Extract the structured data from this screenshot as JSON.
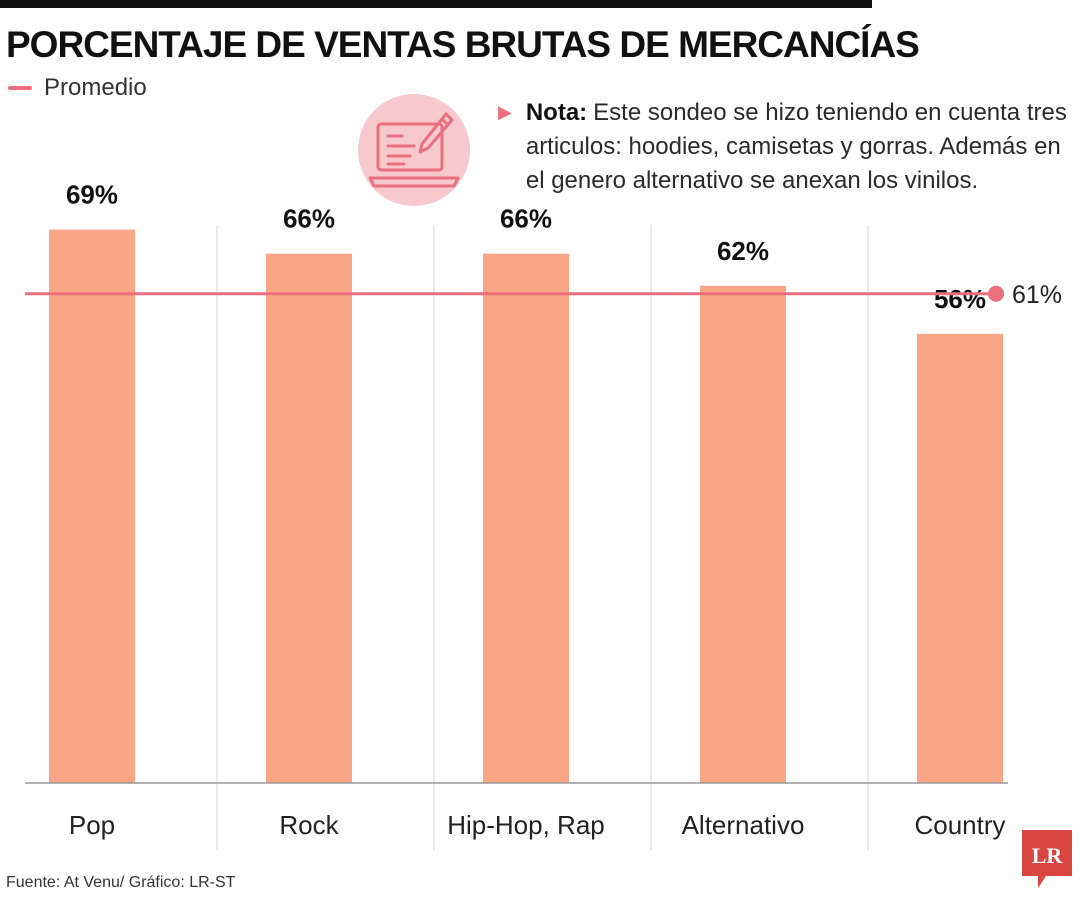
{
  "header": {
    "title": "PORCENTAJE DE VENTAS BRUTAS DE MERCANCÍAS"
  },
  "legend": {
    "average_label": "Promedio"
  },
  "note": {
    "label": "Nota:",
    "text": "Este sondeo se hizo teniendo en cuenta tres articulos: hoodies, camisetas y gorras. Además en el genero alternativo se anexan los vinilos."
  },
  "colors": {
    "bar": "#f9a586",
    "average_line": "#ec6f7e",
    "icon_bg": "#f7c9cd",
    "logo": "#d9453f"
  },
  "icons": {
    "note_icon": "document-pen-icon",
    "logo": "lr-logo"
  },
  "chart_data": {
    "type": "bar",
    "title": "PORCENTAJE DE VENTAS BRUTAS DE MERCANCÍAS",
    "categories": [
      "Pop",
      "Rock",
      "Hip-Hop, Rap",
      "Alternativo",
      "Country"
    ],
    "values": [
      69,
      66,
      66,
      62,
      56
    ],
    "value_labels": [
      "69%",
      "66%",
      "66%",
      "62%",
      "56%"
    ],
    "unit": "%",
    "ylim": [
      0,
      100
    ],
    "grid": false,
    "average": {
      "name": "Promedio",
      "value": 61,
      "label": "61%"
    }
  },
  "footer": {
    "source": "Fuente: At Venu/ Gráfico: LR-ST",
    "logo_text": "LR"
  }
}
